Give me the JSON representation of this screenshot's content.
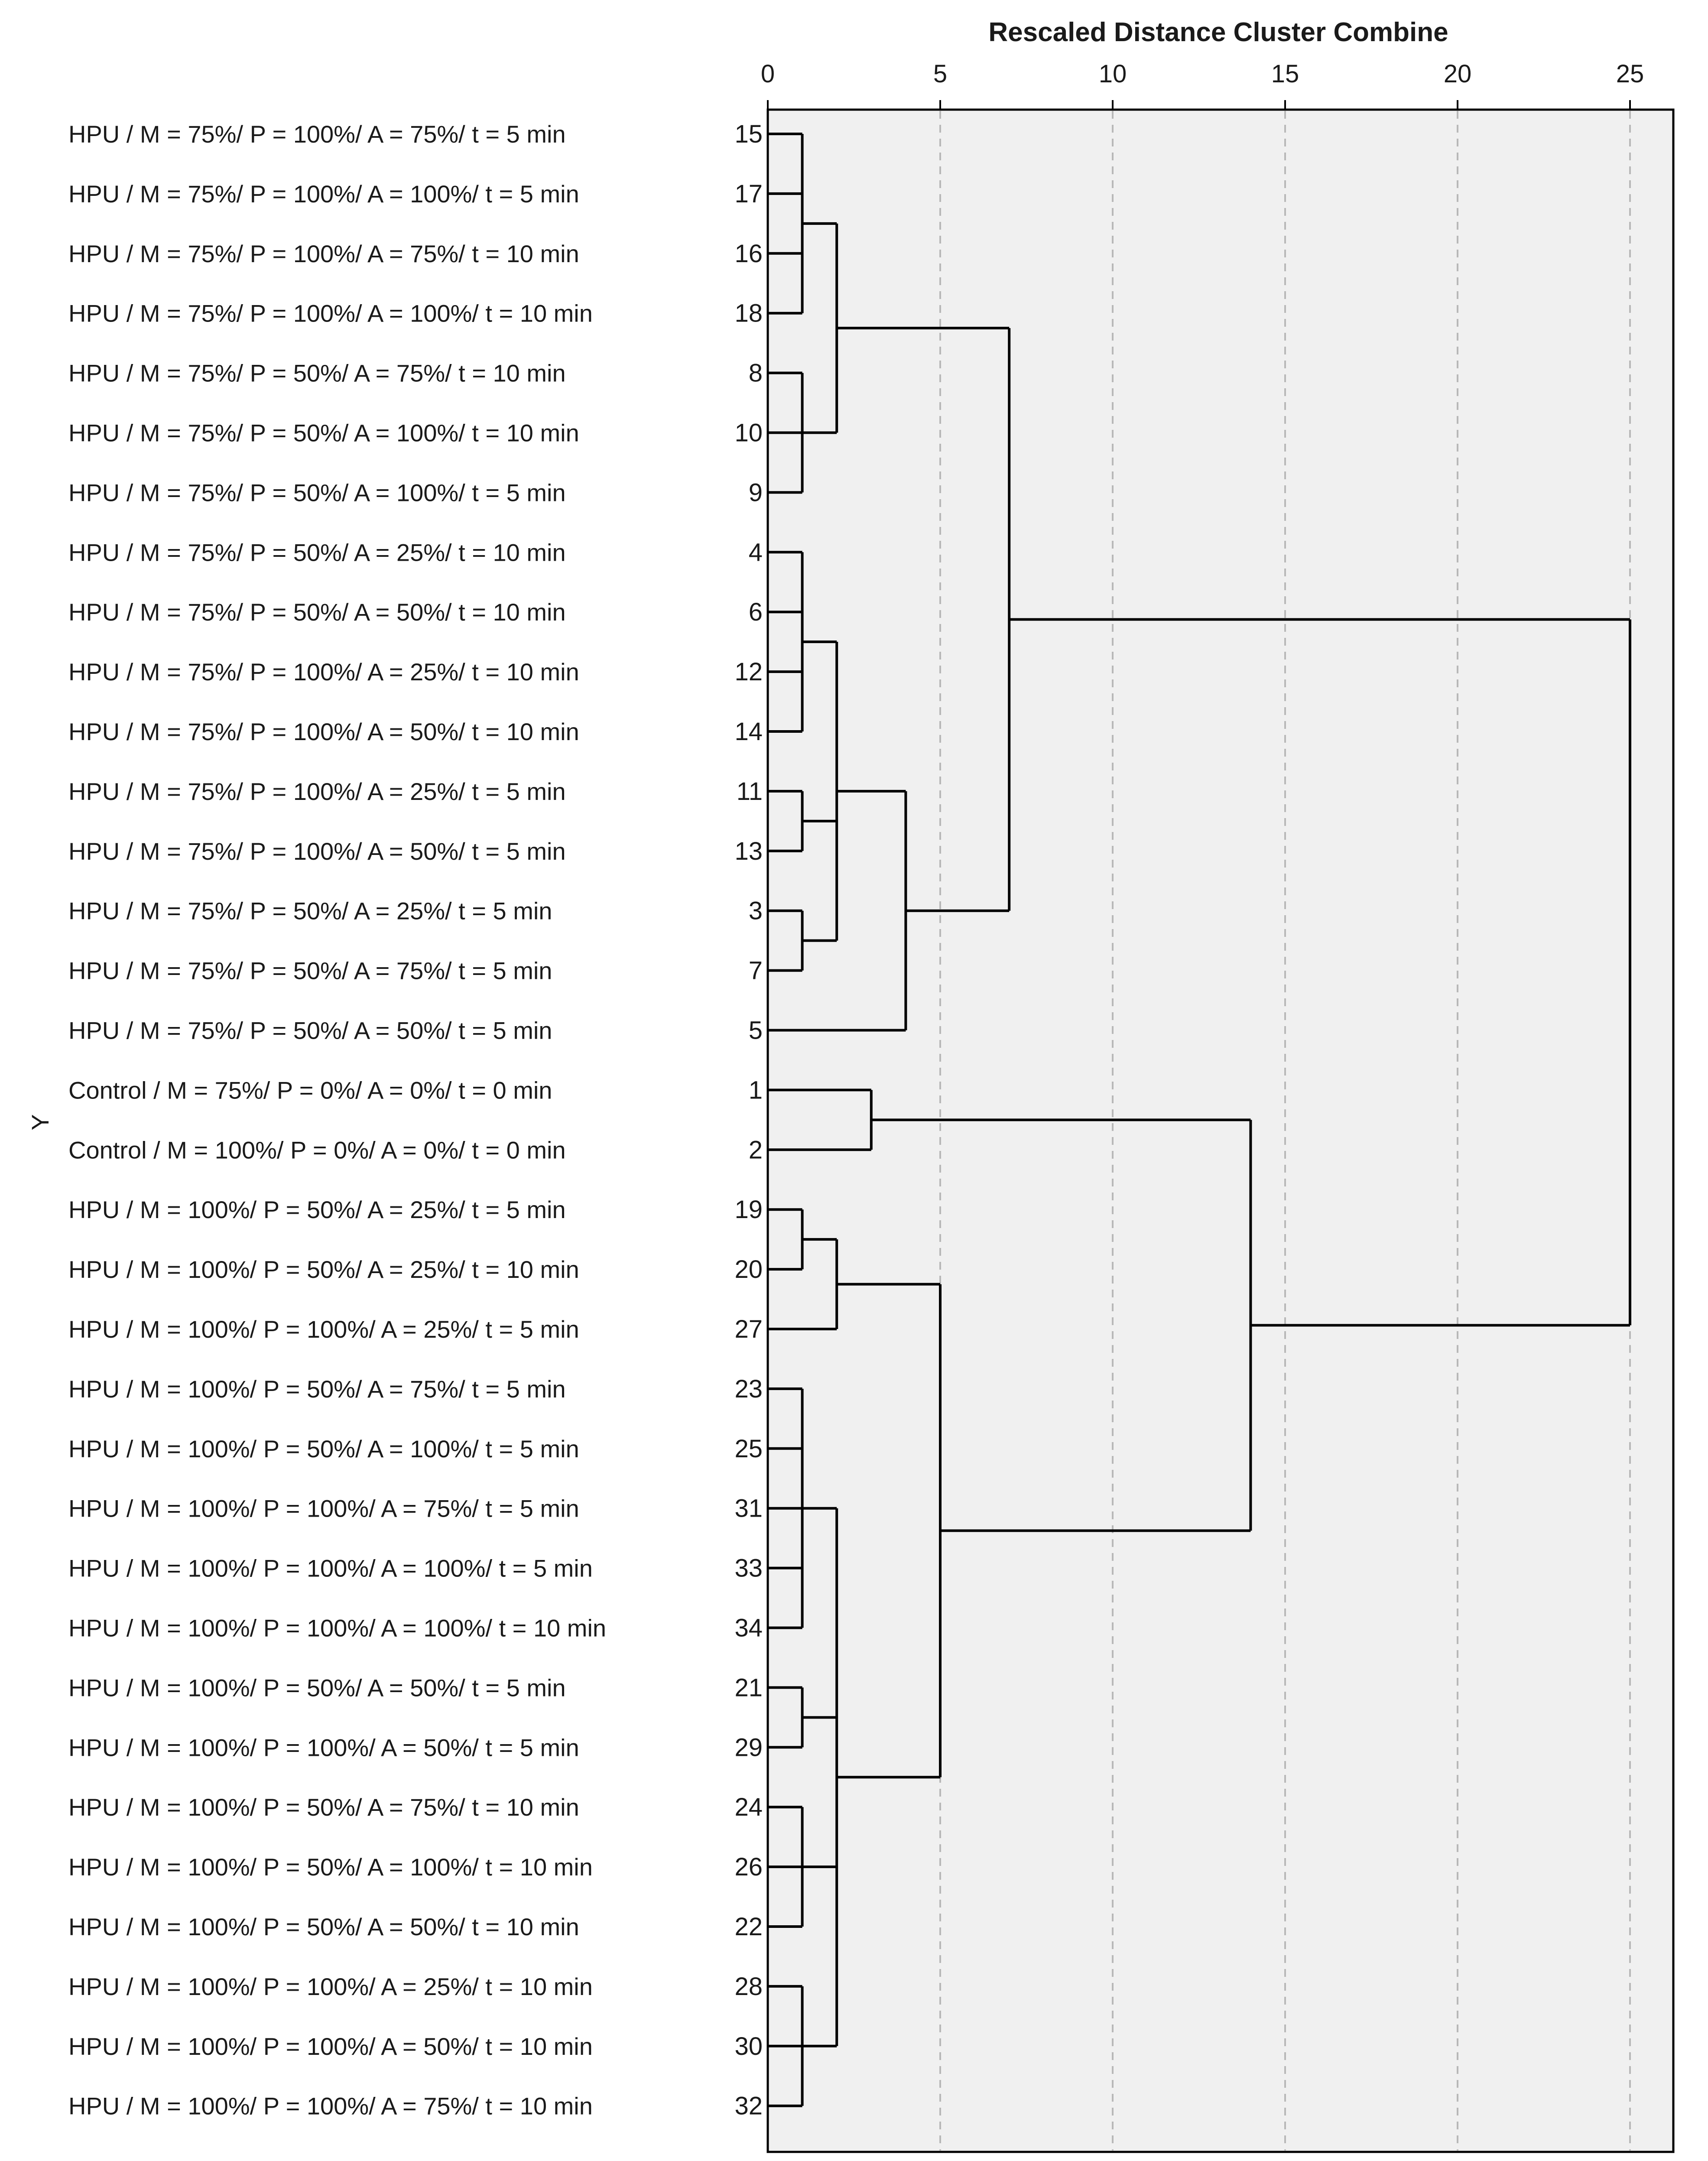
{
  "chart_data": {
    "type": "dendrogram",
    "title": "Rescaled Distance Cluster Combine",
    "ylabel": "Y",
    "xlim": [
      0,
      26
    ],
    "xticks": [
      0,
      5,
      10,
      15,
      20,
      25
    ],
    "grid": true,
    "leaves": [
      {
        "id": "15",
        "label": "HPU / M = 75%/ P = 100%/ A = 75%/ t = 5 min"
      },
      {
        "id": "17",
        "label": "HPU / M = 75%/ P = 100%/ A = 100%/ t = 5 min"
      },
      {
        "id": "16",
        "label": "HPU / M = 75%/ P = 100%/ A = 75%/ t = 10 min"
      },
      {
        "id": "18",
        "label": "HPU / M = 75%/ P = 100%/ A = 100%/ t = 10 min"
      },
      {
        "id": "8",
        "label": "HPU / M = 75%/ P = 50%/ A = 75%/ t = 10 min"
      },
      {
        "id": "10",
        "label": "HPU / M = 75%/ P = 50%/ A = 100%/ t = 10 min"
      },
      {
        "id": "9",
        "label": "HPU / M = 75%/ P = 50%/ A = 100%/ t = 5 min"
      },
      {
        "id": "4",
        "label": "HPU / M = 75%/ P = 50%/ A = 25%/ t = 10 min"
      },
      {
        "id": "6",
        "label": "HPU / M = 75%/ P = 50%/ A = 50%/ t = 10 min"
      },
      {
        "id": "12",
        "label": "HPU / M = 75%/ P = 100%/ A = 25%/ t = 10 min"
      },
      {
        "id": "14",
        "label": "HPU / M = 75%/ P = 100%/ A = 50%/ t = 10 min"
      },
      {
        "id": "11",
        "label": "HPU / M = 75%/ P = 100%/ A = 25%/ t = 5 min"
      },
      {
        "id": "13",
        "label": "HPU / M = 75%/ P = 100%/ A = 50%/ t = 5 min"
      },
      {
        "id": "3",
        "label": "HPU / M = 75%/ P = 50%/ A = 25%/ t = 5 min"
      },
      {
        "id": "7",
        "label": "HPU / M = 75%/ P = 50%/ A = 75%/ t = 5 min"
      },
      {
        "id": "5",
        "label": "HPU / M = 75%/ P = 50%/ A = 50%/ t = 5 min"
      },
      {
        "id": "1",
        "label": "Control / M = 75%/ P = 0%/ A = 0%/ t = 0 min"
      },
      {
        "id": "2",
        "label": "Control / M = 100%/ P = 0%/ A = 0%/ t = 0 min"
      },
      {
        "id": "19",
        "label": "HPU / M = 100%/ P = 50%/ A = 25%/ t = 5 min"
      },
      {
        "id": "20",
        "label": "HPU / M = 100%/ P = 50%/ A = 25%/ t = 10 min"
      },
      {
        "id": "27",
        "label": "HPU / M = 100%/ P = 100%/ A = 25%/ t = 5 min"
      },
      {
        "id": "23",
        "label": "HPU / M = 100%/ P = 50%/ A = 75%/ t = 5 min"
      },
      {
        "id": "25",
        "label": "HPU / M = 100%/ P = 50%/ A = 100%/ t = 5 min"
      },
      {
        "id": "31",
        "label": "HPU / M = 100%/ P = 100%/ A = 75%/ t = 5 min"
      },
      {
        "id": "33",
        "label": "HPU / M = 100%/ P = 100%/ A = 100%/ t = 5 min"
      },
      {
        "id": "34",
        "label": "HPU / M = 100%/ P = 100%/ A = 100%/ t = 10 min"
      },
      {
        "id": "21",
        "label": "HPU / M = 100%/ P = 50%/ A = 50%/ t = 5 min"
      },
      {
        "id": "29",
        "label": "HPU / M = 100%/ P = 100%/ A = 50%/ t = 5 min"
      },
      {
        "id": "24",
        "label": "HPU / M = 100%/ P = 50%/ A = 75%/ t = 10 min"
      },
      {
        "id": "26",
        "label": "HPU / M = 100%/ P = 50%/ A = 100%/ t = 10 min"
      },
      {
        "id": "22",
        "label": "HPU / M = 100%/ P = 50%/ A = 50%/ t = 10 min"
      },
      {
        "id": "28",
        "label": "HPU / M = 100%/ P = 100%/ A = 25%/ t = 10 min"
      },
      {
        "id": "30",
        "label": "HPU / M = 100%/ P = 100%/ A = 50%/ t = 10 min"
      },
      {
        "id": "32",
        "label": "HPU / M = 100%/ P = 100%/ A = 75%/ t = 10 min"
      }
    ],
    "merges": [
      {
        "height": 1,
        "children": [
          "L0",
          "L1",
          "L2",
          "L3"
        ]
      },
      {
        "height": 1,
        "children": [
          "L4",
          "L5",
          "L6"
        ]
      },
      {
        "height": 2,
        "children": [
          "M0",
          "M1"
        ]
      },
      {
        "height": 1,
        "children": [
          "L7",
          "L8",
          "L9",
          "L10"
        ]
      },
      {
        "height": 1,
        "children": [
          "L11",
          "L12"
        ]
      },
      {
        "height": 1,
        "children": [
          "L13",
          "L14"
        ]
      },
      {
        "height": 2,
        "children": [
          "M3",
          "M4",
          "M5"
        ]
      },
      {
        "height": 4,
        "children": [
          "M6",
          "L15"
        ]
      },
      {
        "height": 7,
        "children": [
          "M2",
          "M7"
        ]
      },
      {
        "height": 3,
        "children": [
          "L16",
          "L17"
        ]
      },
      {
        "height": 1,
        "children": [
          "L18",
          "L19"
        ]
      },
      {
        "height": 2,
        "children": [
          "M10",
          "L20"
        ]
      },
      {
        "height": 1,
        "children": [
          "L21",
          "L22",
          "L23",
          "L24",
          "L25"
        ]
      },
      {
        "height": 1,
        "children": [
          "L26",
          "L27"
        ]
      },
      {
        "height": 1,
        "children": [
          "L28",
          "L29",
          "L30"
        ]
      },
      {
        "height": 1,
        "children": [
          "L31",
          "L32",
          "L33"
        ]
      },
      {
        "height": 2,
        "children": [
          "M12",
          "M13",
          "M14",
          "M15"
        ]
      },
      {
        "height": 5,
        "children": [
          "M11",
          "M16"
        ]
      },
      {
        "height": 14,
        "children": [
          "M9",
          "M17"
        ]
      },
      {
        "height": 25,
        "children": [
          "M8",
          "M18"
        ]
      }
    ]
  }
}
